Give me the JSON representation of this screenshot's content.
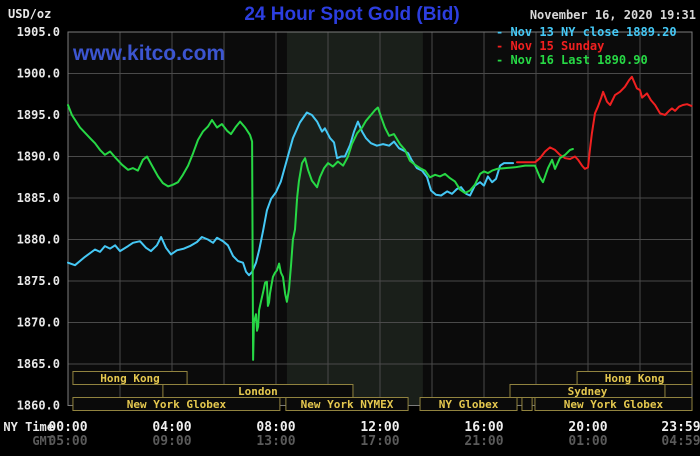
{
  "header": {
    "unit_label": "USD/oz",
    "title": "24 Hour Spot Gold (Bid)",
    "timestamp": "November 16, 2020 19:31",
    "watermark": "www.kitco.com"
  },
  "legend": {
    "items": [
      {
        "label": "- Nov 13 NY close 1889.20",
        "color": "#45c8f5"
      },
      {
        "label": "- Nov 15 Sunday",
        "color": "#f02020"
      },
      {
        "label": "- Nov 16 Last 1890.90",
        "color": "#27d845"
      }
    ]
  },
  "chart_data": {
    "type": "line",
    "title": "24 Hour Spot Gold (Bid)",
    "ylabel": "USD/oz",
    "y_axis": {
      "min": 1860,
      "max": 1905,
      "tick_step": 5,
      "tick_labels": [
        "1905.0",
        "1900.0",
        "1895.0",
        "1890.0",
        "1885.0",
        "1880.0",
        "1875.0",
        "1870.0",
        "1865.0",
        "1860.0"
      ]
    },
    "x_axis": {
      "row_labels": [
        "NY Time",
        "GMT"
      ],
      "range_hours": [
        0,
        24
      ],
      "gridline_every_hours": 2,
      "ticks": [
        {
          "h": 0,
          "ny": "00:00",
          "gmt": "05:00"
        },
        {
          "h": 4,
          "ny": "04:00",
          "gmt": "09:00"
        },
        {
          "h": 8,
          "ny": "08:00",
          "gmt": "13:00"
        },
        {
          "h": 12,
          "ny": "12:00",
          "gmt": "17:00"
        },
        {
          "h": 16,
          "ny": "16:00",
          "gmt": "21:00"
        },
        {
          "h": 20,
          "ny": "20:00",
          "gmt": "01:00"
        },
        {
          "h": 23.98,
          "ny": "23:59",
          "gmt": "04:59"
        }
      ]
    },
    "shaded_region_hours": [
      8.42,
      13.65
    ],
    "sessions": [
      {
        "row": 0,
        "label": "Hong Kong",
        "from_h": 0.19,
        "to_h": 4.58
      },
      {
        "row": 0,
        "label": "Hong Kong",
        "from_h": 19.58,
        "to_h": 24.0
      },
      {
        "row": 1,
        "label": "London",
        "from_h": 3.65,
        "to_h": 10.96
      },
      {
        "row": 1,
        "label": "Sydney",
        "from_h": 17.0,
        "to_h": 22.96
      },
      {
        "row": 2,
        "label": "New York Globex",
        "from_h": 0.19,
        "to_h": 8.15
      },
      {
        "row": 2,
        "label": "New York NYMEX",
        "from_h": 8.38,
        "to_h": 13.08
      },
      {
        "row": 2,
        "label": "NY Globex",
        "from_h": 13.54,
        "to_h": 17.27
      },
      {
        "row": 2,
        "label": "",
        "from_h": 17.46,
        "to_h": 17.85
      },
      {
        "row": 2,
        "label": "New York Globex",
        "from_h": 17.96,
        "to_h": 24.0
      }
    ],
    "series": [
      {
        "name": "Nov 13 NY close 1889.20",
        "color": "#45c8f5",
        "points": [
          [
            0,
            1877.2
          ],
          [
            0.27,
            1876.9
          ],
          [
            0.65,
            1877.9
          ],
          [
            1.04,
            1878.8
          ],
          [
            1.23,
            1878.5
          ],
          [
            1.42,
            1879.2
          ],
          [
            1.62,
            1878.9
          ],
          [
            1.81,
            1879.3
          ],
          [
            2.0,
            1878.6
          ],
          [
            2.31,
            1879.2
          ],
          [
            2.5,
            1879.6
          ],
          [
            2.77,
            1879.8
          ],
          [
            3.0,
            1879.0
          ],
          [
            3.19,
            1878.6
          ],
          [
            3.42,
            1879.3
          ],
          [
            3.58,
            1880.3
          ],
          [
            3.77,
            1879.0
          ],
          [
            3.96,
            1878.2
          ],
          [
            4.19,
            1878.7
          ],
          [
            4.46,
            1878.9
          ],
          [
            4.69,
            1879.2
          ],
          [
            4.96,
            1879.7
          ],
          [
            5.15,
            1880.3
          ],
          [
            5.38,
            1880.0
          ],
          [
            5.58,
            1879.6
          ],
          [
            5.73,
            1880.2
          ],
          [
            5.96,
            1879.8
          ],
          [
            6.15,
            1879.3
          ],
          [
            6.35,
            1878.0
          ],
          [
            6.54,
            1877.4
          ],
          [
            6.73,
            1877.2
          ],
          [
            6.85,
            1876.1
          ],
          [
            6.96,
            1875.7
          ],
          [
            7.08,
            1876.1
          ],
          [
            7.23,
            1877.2
          ],
          [
            7.35,
            1878.7
          ],
          [
            7.5,
            1881.0
          ],
          [
            7.65,
            1883.5
          ],
          [
            7.81,
            1884.9
          ],
          [
            8.0,
            1885.7
          ],
          [
            8.19,
            1887.0
          ],
          [
            8.42,
            1889.6
          ],
          [
            8.65,
            1892.2
          ],
          [
            8.92,
            1894.1
          ],
          [
            9.19,
            1895.3
          ],
          [
            9.38,
            1895.0
          ],
          [
            9.58,
            1894.2
          ],
          [
            9.77,
            1893.0
          ],
          [
            9.88,
            1893.4
          ],
          [
            10.08,
            1892.2
          ],
          [
            10.23,
            1891.7
          ],
          [
            10.35,
            1889.8
          ],
          [
            10.5,
            1890.0
          ],
          [
            10.65,
            1890.0
          ],
          [
            10.85,
            1891.4
          ],
          [
            11.0,
            1893.0
          ],
          [
            11.15,
            1894.2
          ],
          [
            11.31,
            1893.0
          ],
          [
            11.46,
            1892.2
          ],
          [
            11.65,
            1891.6
          ],
          [
            11.88,
            1891.3
          ],
          [
            12.12,
            1891.5
          ],
          [
            12.35,
            1891.3
          ],
          [
            12.54,
            1891.8
          ],
          [
            12.73,
            1891.0
          ],
          [
            12.92,
            1890.7
          ],
          [
            13.08,
            1890.4
          ],
          [
            13.23,
            1889.5
          ],
          [
            13.42,
            1888.6
          ],
          [
            13.62,
            1888.3
          ],
          [
            13.81,
            1887.5
          ],
          [
            13.96,
            1885.9
          ],
          [
            14.15,
            1885.4
          ],
          [
            14.35,
            1885.3
          ],
          [
            14.58,
            1885.8
          ],
          [
            14.77,
            1885.5
          ],
          [
            14.96,
            1886.1
          ],
          [
            15.12,
            1886.3
          ],
          [
            15.31,
            1885.5
          ],
          [
            15.46,
            1885.3
          ],
          [
            15.65,
            1886.5
          ],
          [
            15.85,
            1886.9
          ],
          [
            16.0,
            1886.5
          ],
          [
            16.15,
            1887.6
          ],
          [
            16.31,
            1886.9
          ],
          [
            16.46,
            1887.3
          ],
          [
            16.62,
            1888.9
          ],
          [
            16.77,
            1889.2
          ],
          [
            17.12,
            1889.2
          ]
        ]
      },
      {
        "name": "Nov 15 Sunday",
        "color": "#f02020",
        "points": [
          [
            17.27,
            1889.3
          ],
          [
            17.96,
            1889.3
          ],
          [
            18.15,
            1889.8
          ],
          [
            18.35,
            1890.6
          ],
          [
            18.54,
            1891.1
          ],
          [
            18.73,
            1890.8
          ],
          [
            18.92,
            1890.2
          ],
          [
            19.12,
            1889.8
          ],
          [
            19.31,
            1889.7
          ],
          [
            19.5,
            1890.0
          ],
          [
            19.62,
            1889.6
          ],
          [
            19.77,
            1888.9
          ],
          [
            19.88,
            1888.5
          ],
          [
            20.0,
            1888.7
          ],
          [
            20.08,
            1891.0
          ],
          [
            20.15,
            1892.8
          ],
          [
            20.27,
            1895.2
          ],
          [
            20.38,
            1896.0
          ],
          [
            20.5,
            1897.0
          ],
          [
            20.58,
            1897.8
          ],
          [
            20.73,
            1896.6
          ],
          [
            20.85,
            1896.2
          ],
          [
            21.04,
            1897.4
          ],
          [
            21.23,
            1897.8
          ],
          [
            21.42,
            1898.4
          ],
          [
            21.58,
            1899.2
          ],
          [
            21.69,
            1899.6
          ],
          [
            21.88,
            1898.2
          ],
          [
            22.0,
            1898.0
          ],
          [
            22.08,
            1897.1
          ],
          [
            22.27,
            1897.6
          ],
          [
            22.42,
            1896.8
          ],
          [
            22.58,
            1896.2
          ],
          [
            22.77,
            1895.2
          ],
          [
            22.96,
            1895.0
          ],
          [
            23.12,
            1895.5
          ],
          [
            23.23,
            1895.8
          ],
          [
            23.35,
            1895.5
          ],
          [
            23.5,
            1896.0
          ],
          [
            23.65,
            1896.2
          ],
          [
            23.81,
            1896.3
          ],
          [
            23.98,
            1896.1
          ]
        ]
      },
      {
        "name": "Nov 16 Last 1890.90",
        "color": "#27d845",
        "points": [
          [
            0,
            1896.2
          ],
          [
            0.15,
            1895.0
          ],
          [
            0.46,
            1893.5
          ],
          [
            0.85,
            1892.2
          ],
          [
            1.04,
            1891.6
          ],
          [
            1.23,
            1890.8
          ],
          [
            1.42,
            1890.2
          ],
          [
            1.62,
            1890.6
          ],
          [
            1.81,
            1889.9
          ],
          [
            2.08,
            1889.0
          ],
          [
            2.31,
            1888.4
          ],
          [
            2.5,
            1888.6
          ],
          [
            2.69,
            1888.3
          ],
          [
            2.88,
            1889.6
          ],
          [
            3.04,
            1890.0
          ],
          [
            3.23,
            1888.9
          ],
          [
            3.46,
            1887.6
          ],
          [
            3.65,
            1886.8
          ],
          [
            3.85,
            1886.4
          ],
          [
            4.04,
            1886.6
          ],
          [
            4.23,
            1886.9
          ],
          [
            4.42,
            1887.8
          ],
          [
            4.62,
            1888.9
          ],
          [
            4.81,
            1890.4
          ],
          [
            5.0,
            1892.0
          ],
          [
            5.19,
            1893.0
          ],
          [
            5.38,
            1893.6
          ],
          [
            5.54,
            1894.4
          ],
          [
            5.73,
            1893.5
          ],
          [
            5.92,
            1893.9
          ],
          [
            6.12,
            1893.1
          ],
          [
            6.27,
            1892.7
          ],
          [
            6.46,
            1893.6
          ],
          [
            6.62,
            1894.2
          ],
          [
            6.81,
            1893.5
          ],
          [
            7.0,
            1892.6
          ],
          [
            7.08,
            1891.8
          ],
          [
            7.12,
            1865.5
          ],
          [
            7.15,
            1870.0
          ],
          [
            7.23,
            1871.0
          ],
          [
            7.27,
            1869.0
          ],
          [
            7.31,
            1869.5
          ],
          [
            7.35,
            1871.5
          ],
          [
            7.42,
            1872.5
          ],
          [
            7.5,
            1873.6
          ],
          [
            7.58,
            1874.8
          ],
          [
            7.65,
            1874.9
          ],
          [
            7.69,
            1872.0
          ],
          [
            7.73,
            1872.4
          ],
          [
            7.77,
            1873.5
          ],
          [
            7.88,
            1875.5
          ],
          [
            7.96,
            1876.0
          ],
          [
            8.04,
            1876.3
          ],
          [
            8.12,
            1877.1
          ],
          [
            8.19,
            1876.0
          ],
          [
            8.27,
            1875.5
          ],
          [
            8.35,
            1873.5
          ],
          [
            8.42,
            1872.5
          ],
          [
            8.5,
            1874.0
          ],
          [
            8.58,
            1877.0
          ],
          [
            8.65,
            1880.0
          ],
          [
            8.73,
            1881.2
          ],
          [
            8.81,
            1885.0
          ],
          [
            8.88,
            1887.0
          ],
          [
            9.0,
            1889.2
          ],
          [
            9.12,
            1889.8
          ],
          [
            9.23,
            1888.4
          ],
          [
            9.38,
            1887.1
          ],
          [
            9.58,
            1886.3
          ],
          [
            9.69,
            1887.5
          ],
          [
            9.85,
            1888.6
          ],
          [
            10.0,
            1889.2
          ],
          [
            10.19,
            1888.8
          ],
          [
            10.38,
            1889.4
          ],
          [
            10.58,
            1888.9
          ],
          [
            10.77,
            1890.0
          ],
          [
            10.92,
            1891.5
          ],
          [
            11.12,
            1892.8
          ],
          [
            11.31,
            1893.5
          ],
          [
            11.46,
            1894.3
          ],
          [
            11.65,
            1895.0
          ],
          [
            11.81,
            1895.6
          ],
          [
            11.92,
            1895.9
          ],
          [
            12.04,
            1894.8
          ],
          [
            12.19,
            1893.5
          ],
          [
            12.35,
            1892.5
          ],
          [
            12.54,
            1892.7
          ],
          [
            12.77,
            1891.5
          ],
          [
            12.96,
            1890.8
          ],
          [
            13.15,
            1889.5
          ],
          [
            13.35,
            1889.0
          ],
          [
            13.54,
            1888.6
          ],
          [
            13.73,
            1888.3
          ],
          [
            13.92,
            1887.5
          ],
          [
            14.12,
            1887.8
          ],
          [
            14.31,
            1887.6
          ],
          [
            14.5,
            1887.9
          ],
          [
            14.69,
            1887.4
          ],
          [
            14.88,
            1887.0
          ],
          [
            15.08,
            1886.0
          ],
          [
            15.27,
            1885.6
          ],
          [
            15.46,
            1885.9
          ],
          [
            15.65,
            1886.6
          ],
          [
            15.85,
            1887.9
          ],
          [
            16.0,
            1888.2
          ],
          [
            16.15,
            1888.0
          ],
          [
            16.31,
            1888.3
          ],
          [
            16.5,
            1888.5
          ],
          [
            16.81,
            1888.6
          ],
          [
            17.19,
            1888.7
          ],
          [
            17.58,
            1888.9
          ],
          [
            17.96,
            1888.9
          ],
          [
            18.15,
            1887.5
          ],
          [
            18.27,
            1886.9
          ],
          [
            18.46,
            1888.6
          ],
          [
            18.62,
            1889.6
          ],
          [
            18.73,
            1888.5
          ],
          [
            18.92,
            1889.8
          ],
          [
            19.12,
            1890.2
          ],
          [
            19.31,
            1890.8
          ],
          [
            19.42,
            1890.9
          ]
        ]
      }
    ]
  }
}
